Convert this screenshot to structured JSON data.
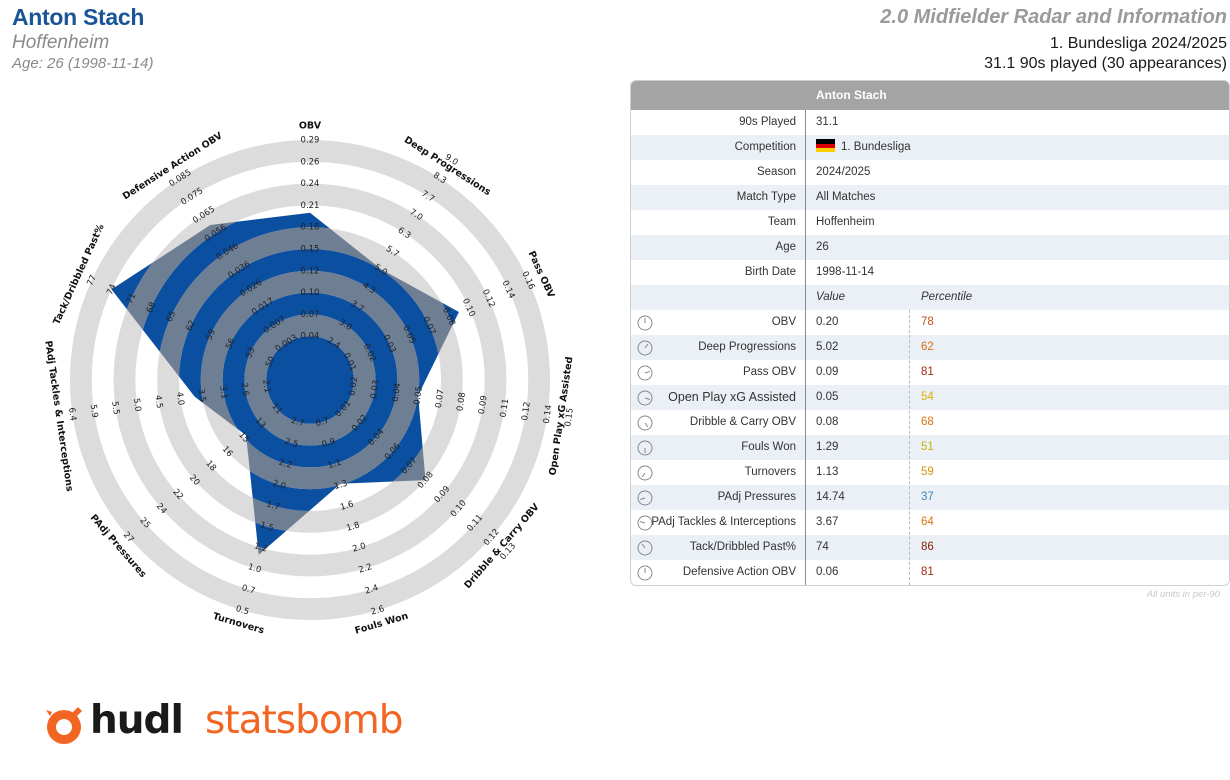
{
  "header": {
    "player_name": "Anton Stach",
    "team": "Hoffenheim",
    "age_line": "Age: 26 (1998-11-14)",
    "report_title": "2.0 Midfielder Radar and Information",
    "league_season": "1. Bundesliga 2024/2025",
    "played_line": "31.1 90s played (30 appearances)"
  },
  "colors": {
    "player_fill": "#0b4fa1",
    "player_overlay": "#6e7f94",
    "ring_band": "#dcdcdc",
    "name_blue": "#1b5597",
    "brand_orange": "#f26522"
  },
  "chart_data": {
    "type": "radar",
    "title": "",
    "metrics": [
      {
        "name": "OBV",
        "value": 0.2,
        "ticks": [
          "0.04",
          "0.07",
          "0.10",
          "0.12",
          "0.15",
          "0.18",
          "0.21",
          "0.24",
          "0.26",
          "0.29"
        ]
      },
      {
        "name": "Deep Progressions",
        "value": 5.02,
        "ticks": [
          "2.4",
          "3.0",
          "3.7",
          "4.3",
          "5.0",
          "5.7",
          "6.3",
          "7.0",
          "7.7",
          "8.3",
          "9.0"
        ]
      },
      {
        "name": "Pass OBV",
        "value": 0.09,
        "ticks": [
          "0.01",
          "0.02",
          "0.03",
          "0.05",
          "0.07",
          "0.08",
          "0.10",
          "0.12",
          "0.14",
          "0.16"
        ]
      },
      {
        "name": "Open Play xG Assisted",
        "value": 0.05,
        "ticks": [
          "0.02",
          "0.03",
          "0.04",
          "0.05",
          "0.07",
          "0.08",
          "0.09",
          "0.11",
          "0.12",
          "0.14",
          "0.15"
        ]
      },
      {
        "name": "Dribble & Carry OBV",
        "value": 0.08,
        "ticks": [
          "0.01",
          "0.02",
          "0.04",
          "0.06",
          "0.07",
          "0.08",
          "0.09",
          "0.10",
          "0.11",
          "0.12",
          "0.13"
        ]
      },
      {
        "name": "Fouls Won",
        "value": 1.29,
        "ticks": [
          "0.7",
          "0.9",
          "1.1",
          "1.3",
          "1.6",
          "1.8",
          "2.0",
          "2.2",
          "2.4",
          "2.6"
        ]
      },
      {
        "name": "Turnovers",
        "value": 1.13,
        "ticks": [
          "2.7",
          "2.5",
          "2.2",
          "2.0",
          "1.7",
          "1.5",
          "1.2",
          "1.0",
          "0.7",
          "0.5"
        ]
      },
      {
        "name": "PAdj Pressures",
        "value": 14.74,
        "ticks": [
          "11",
          "13",
          "15",
          "16",
          "18",
          "20",
          "22",
          "24",
          "25",
          "27"
        ]
      },
      {
        "name": "PAdj Tackles & Interceptions",
        "value": 3.67,
        "ticks": [
          "2.1",
          "2.6",
          "3.1",
          "3.5",
          "4.0",
          "4.5",
          "5.0",
          "5.5",
          "5.9",
          "6.4"
        ]
      },
      {
        "name": "Tack/Dribbled Past%",
        "value": 74,
        "ticks": [
          "50",
          "53",
          "56",
          "59",
          "62",
          "65",
          "68",
          "71",
          "74",
          "77"
        ]
      },
      {
        "name": "Defensive Action OBV",
        "value": 0.06,
        "ticks": [
          "0.003",
          "0.007",
          "0.017",
          "0.026",
          "0.036",
          "0.046",
          "0.056",
          "0.065",
          "0.075",
          "0.085"
        ]
      }
    ],
    "legend": "none",
    "grid": "concentric bands"
  },
  "table": {
    "title": "Anton Stach",
    "info_rows": [
      {
        "label": "90s Played",
        "value": "31.1"
      },
      {
        "label": "Competition",
        "value": "1. Bundesliga",
        "flag": "germany"
      },
      {
        "label": "Season",
        "value": "2024/2025"
      },
      {
        "label": "Match Type",
        "value": "All Matches"
      },
      {
        "label": "Team",
        "value": "Hoffenheim"
      },
      {
        "label": "Age",
        "value": "26"
      },
      {
        "label": "Birth Date",
        "value": "1998-11-14"
      }
    ],
    "col_value": "Value",
    "col_percentile": "Percentile",
    "metric_rows": [
      {
        "label": "OBV",
        "value": "0.20",
        "percentile": "78",
        "color": "#c0511a"
      },
      {
        "label": "Deep Progressions",
        "value": "5.02",
        "percentile": "62",
        "color": "#d9730f"
      },
      {
        "label": "Pass OBV",
        "value": "0.09",
        "percentile": "81",
        "color": "#a52a0e"
      },
      {
        "label": "Open Play xG Assisted",
        "value": "0.05",
        "percentile": "54",
        "color": "#e0b000"
      },
      {
        "label": "Dribble & Carry OBV",
        "value": "0.08",
        "percentile": "68",
        "color": "#d9730f"
      },
      {
        "label": "Fouls Won",
        "value": "1.29",
        "percentile": "51",
        "color": "#c5b400"
      },
      {
        "label": "Turnovers",
        "value": "1.13",
        "percentile": "59",
        "color": "#d9900f"
      },
      {
        "label": "PAdj Pressures",
        "value": "14.74",
        "percentile": "37",
        "color": "#3b8ab8"
      },
      {
        "label": "PAdj Tackles & Interceptions",
        "value": "3.67",
        "percentile": "64",
        "color": "#d9730f"
      },
      {
        "label": "Tack/Dribbled Past%",
        "value": "74",
        "percentile": "86",
        "color": "#8c1a0a"
      },
      {
        "label": "Defensive Action OBV",
        "value": "0.06",
        "percentile": "81",
        "color": "#a52a0e"
      }
    ],
    "units_note": "All units in per-90"
  },
  "logo": {
    "part1": "hudl",
    "part2": "statsbomb"
  }
}
